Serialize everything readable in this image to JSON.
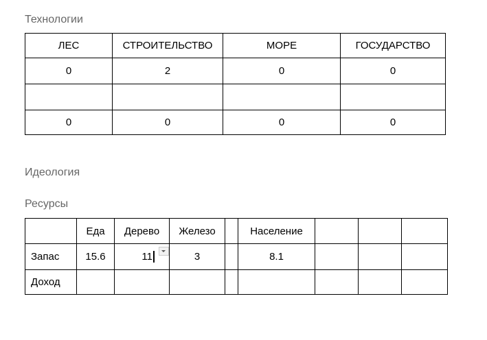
{
  "headings": {
    "tech": "Технологии",
    "ideology": "Идеология",
    "resources": "Ресурсы"
  },
  "tech_table": {
    "headers": [
      "ЛЕС",
      "СТРОИТЕЛЬСТВО",
      "МОРЕ",
      "ГОСУДАРСТВО"
    ],
    "rows": [
      [
        "0",
        "2",
        "0",
        "0"
      ],
      [
        "",
        "",
        "",
        ""
      ],
      [
        "0",
        "0",
        "0",
        "0"
      ]
    ]
  },
  "res_table": {
    "headers": [
      "",
      "Еда",
      "Дерево",
      "Железо",
      "",
      "Население",
      "",
      "",
      ""
    ],
    "rows": [
      [
        "Запас",
        "15.6",
        "11",
        "3",
        "",
        "8.1",
        "",
        "",
        ""
      ],
      [
        "Доход",
        "",
        "",
        "",
        "",
        "",
        "",
        "",
        ""
      ]
    ]
  },
  "icons": {
    "cell_dropdown": "dropdown-arrow-icon"
  }
}
